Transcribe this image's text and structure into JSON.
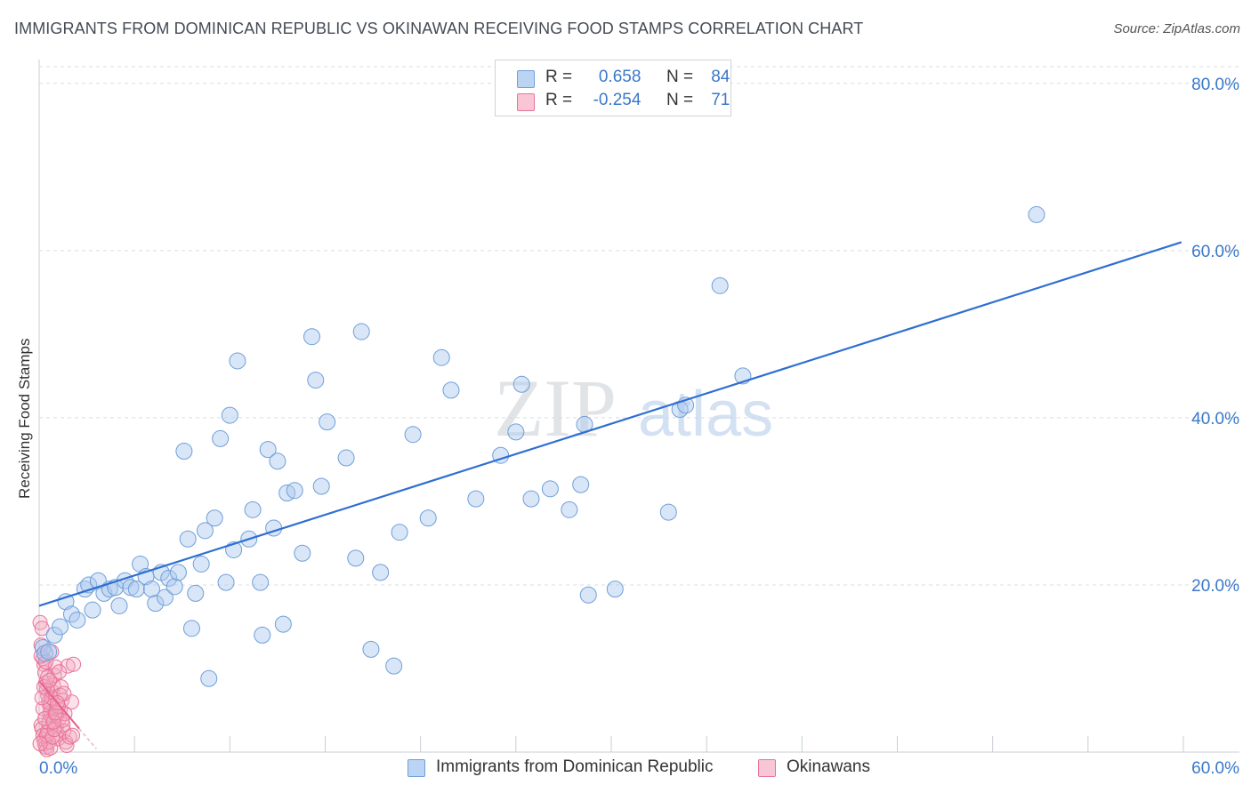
{
  "title": "IMMIGRANTS FROM DOMINICAN REPUBLIC VS OKINAWAN RECEIVING FOOD STAMPS CORRELATION CHART",
  "source": "Source: ZipAtlas.com",
  "watermark": {
    "zip": "ZIP",
    "atlas": "atlas"
  },
  "legend": {
    "series1": {
      "r_label": "R =",
      "r_value": "0.658",
      "n_label": "N =",
      "n_value": "84"
    },
    "series2": {
      "r_label": "R =",
      "r_value": "-0.254",
      "n_label": "N =",
      "n_value": "71"
    }
  },
  "colors": {
    "blue_fill": "#aac8f0",
    "blue_stroke": "#6f9fd8",
    "blue_line": "#2f6fd1",
    "pink_fill": "#f4a9c0",
    "pink_stroke": "#e7739a",
    "pink_line": "#e8608c",
    "grid": "#d8dde2",
    "tick_text": "#3a78c9"
  },
  "chart_data": {
    "type": "scatter",
    "title": "IMMIGRANTS FROM DOMINICAN REPUBLIC VS OKINAWAN RECEIVING FOOD STAMPS CORRELATION CHART",
    "xlabel": "",
    "ylabel": "Receiving Food Stamps",
    "xlim": [
      0,
      60
    ],
    "ylim": [
      0,
      82
    ],
    "x_tick_labels": [
      {
        "value": 0,
        "label": "0.0%"
      },
      {
        "value": 60,
        "label": "60.0%"
      }
    ],
    "y_tick_labels": [
      {
        "value": 20,
        "label": "20.0%"
      },
      {
        "value": 40,
        "label": "40.0%"
      },
      {
        "value": 60,
        "label": "60.0%"
      },
      {
        "value": 80,
        "label": "80.0%"
      }
    ],
    "series": [
      {
        "name": "Immigrants from Dominican Republic",
        "color": "#aac8f0",
        "trendline": {
          "x": [
            0,
            59.9
          ],
          "y": [
            17.5,
            61
          ]
        },
        "points": [
          [
            0.2,
            12.5
          ],
          [
            0.3,
            11.8
          ],
          [
            0.5,
            12
          ],
          [
            0.8,
            14
          ],
          [
            1.1,
            15
          ],
          [
            1.4,
            18
          ],
          [
            1.7,
            16.5
          ],
          [
            2.0,
            15.8
          ],
          [
            2.4,
            19.5
          ],
          [
            2.6,
            20
          ],
          [
            2.8,
            17
          ],
          [
            3.1,
            20.5
          ],
          [
            3.4,
            19
          ],
          [
            3.7,
            19.5
          ],
          [
            4.0,
            19.7
          ],
          [
            4.2,
            17.5
          ],
          [
            4.5,
            20.5
          ],
          [
            4.8,
            19.7
          ],
          [
            5.1,
            19.5
          ],
          [
            5.3,
            22.5
          ],
          [
            5.6,
            21
          ],
          [
            5.9,
            19.5
          ],
          [
            6.1,
            17.8
          ],
          [
            6.4,
            21.5
          ],
          [
            6.6,
            18.5
          ],
          [
            6.8,
            20.8
          ],
          [
            7.1,
            19.8
          ],
          [
            7.3,
            21.5
          ],
          [
            7.6,
            36
          ],
          [
            7.8,
            25.5
          ],
          [
            8.0,
            14.8
          ],
          [
            8.2,
            19
          ],
          [
            8.5,
            22.5
          ],
          [
            8.7,
            26.5
          ],
          [
            8.9,
            8.8
          ],
          [
            9.2,
            28
          ],
          [
            9.5,
            37.5
          ],
          [
            9.8,
            20.3
          ],
          [
            10.0,
            40.3
          ],
          [
            10.2,
            24.2
          ],
          [
            10.4,
            46.8
          ],
          [
            11.0,
            25.5
          ],
          [
            11.2,
            29
          ],
          [
            11.6,
            20.3
          ],
          [
            11.7,
            14
          ],
          [
            12.0,
            36.2
          ],
          [
            12.3,
            26.8
          ],
          [
            12.5,
            34.8
          ],
          [
            12.8,
            15.3
          ],
          [
            13.0,
            31
          ],
          [
            13.4,
            31.3
          ],
          [
            13.8,
            23.8
          ],
          [
            14.3,
            49.7
          ],
          [
            14.5,
            44.5
          ],
          [
            14.8,
            31.8
          ],
          [
            15.1,
            39.5
          ],
          [
            16.1,
            35.2
          ],
          [
            16.6,
            23.2
          ],
          [
            16.9,
            50.3
          ],
          [
            17.4,
            12.3
          ],
          [
            17.9,
            21.5
          ],
          [
            18.6,
            10.3
          ],
          [
            18.9,
            26.3
          ],
          [
            19.6,
            38
          ],
          [
            20.4,
            28
          ],
          [
            21.1,
            47.2
          ],
          [
            21.6,
            43.3
          ],
          [
            22.9,
            30.3
          ],
          [
            24.2,
            35.5
          ],
          [
            25.0,
            38.3
          ],
          [
            25.3,
            44
          ],
          [
            25.8,
            30.3
          ],
          [
            26.8,
            31.5
          ],
          [
            27.8,
            29
          ],
          [
            28.4,
            32
          ],
          [
            28.6,
            39.2
          ],
          [
            28.8,
            18.8
          ],
          [
            30.2,
            19.5
          ],
          [
            33.0,
            28.7
          ],
          [
            33.6,
            41
          ],
          [
            33.9,
            41.5
          ],
          [
            35.7,
            55.8
          ],
          [
            36.9,
            45
          ],
          [
            52.3,
            64.3
          ]
        ]
      },
      {
        "name": "Okinawans",
        "color": "#f4a9c0",
        "trendline": {
          "x": [
            0,
            2.1
          ],
          "y": [
            8.5,
            2.8
          ]
        },
        "trendline_dashed": {
          "x": [
            2.1,
            3.0
          ],
          "y": [
            2.8,
            0.4
          ]
        },
        "points": [
          [
            0.05,
            15.5
          ],
          [
            0.1,
            12.8
          ],
          [
            0.15,
            14.8
          ],
          [
            0.2,
            11.2
          ],
          [
            0.25,
            10.5
          ],
          [
            0.3,
            9.5
          ],
          [
            0.35,
            8.3
          ],
          [
            0.4,
            7.5
          ],
          [
            0.45,
            6.8
          ],
          [
            0.5,
            6.0
          ],
          [
            0.55,
            5.5
          ],
          [
            0.6,
            4.8
          ],
          [
            0.65,
            4.2
          ],
          [
            0.7,
            3.8
          ],
          [
            0.1,
            3.2
          ],
          [
            0.15,
            2.8
          ],
          [
            0.2,
            2.0
          ],
          [
            0.25,
            1.5
          ],
          [
            0.3,
            1.0
          ],
          [
            0.35,
            0.6
          ],
          [
            0.4,
            0.3
          ],
          [
            0.45,
            2.5
          ],
          [
            0.5,
            3.5
          ],
          [
            0.55,
            4.5
          ],
          [
            0.6,
            5.8
          ],
          [
            0.65,
            6.5
          ],
          [
            0.7,
            7.2
          ],
          [
            0.75,
            8.0
          ],
          [
            0.8,
            9.2
          ],
          [
            0.85,
            10.2
          ],
          [
            0.9,
            3.0
          ],
          [
            0.95,
            2.2
          ],
          [
            1.0,
            1.6
          ],
          [
            1.05,
            4.0
          ],
          [
            1.1,
            5.0
          ],
          [
            1.15,
            7.8
          ],
          [
            1.2,
            6.2
          ],
          [
            1.25,
            3.3
          ],
          [
            1.3,
            2.5
          ],
          [
            1.35,
            4.6
          ],
          [
            1.4,
            1.2
          ],
          [
            1.45,
            0.8
          ],
          [
            1.5,
            10.3
          ],
          [
            1.6,
            1.8
          ],
          [
            1.7,
            6.0
          ],
          [
            1.75,
            2.0
          ],
          [
            1.8,
            10.5
          ],
          [
            0.2,
            5.2
          ],
          [
            0.3,
            4.0
          ],
          [
            0.4,
            2.0
          ],
          [
            0.5,
            1.2
          ],
          [
            0.6,
            0.5
          ],
          [
            0.7,
            1.8
          ],
          [
            0.8,
            2.7
          ],
          [
            0.9,
            4.4
          ],
          [
            1.0,
            5.5
          ],
          [
            1.1,
            6.8
          ],
          [
            1.2,
            3.8
          ],
          [
            1.3,
            7.0
          ],
          [
            0.15,
            6.5
          ],
          [
            0.25,
            7.8
          ],
          [
            0.35,
            10.8
          ],
          [
            0.45,
            9.0
          ],
          [
            0.55,
            8.6
          ],
          [
            0.65,
            12.0
          ],
          [
            0.75,
            3.6
          ],
          [
            0.85,
            4.7
          ],
          [
            0.95,
            5.9
          ],
          [
            1.05,
            9.6
          ],
          [
            0.05,
            1.0
          ],
          [
            0.1,
            11.5
          ]
        ]
      }
    ]
  }
}
